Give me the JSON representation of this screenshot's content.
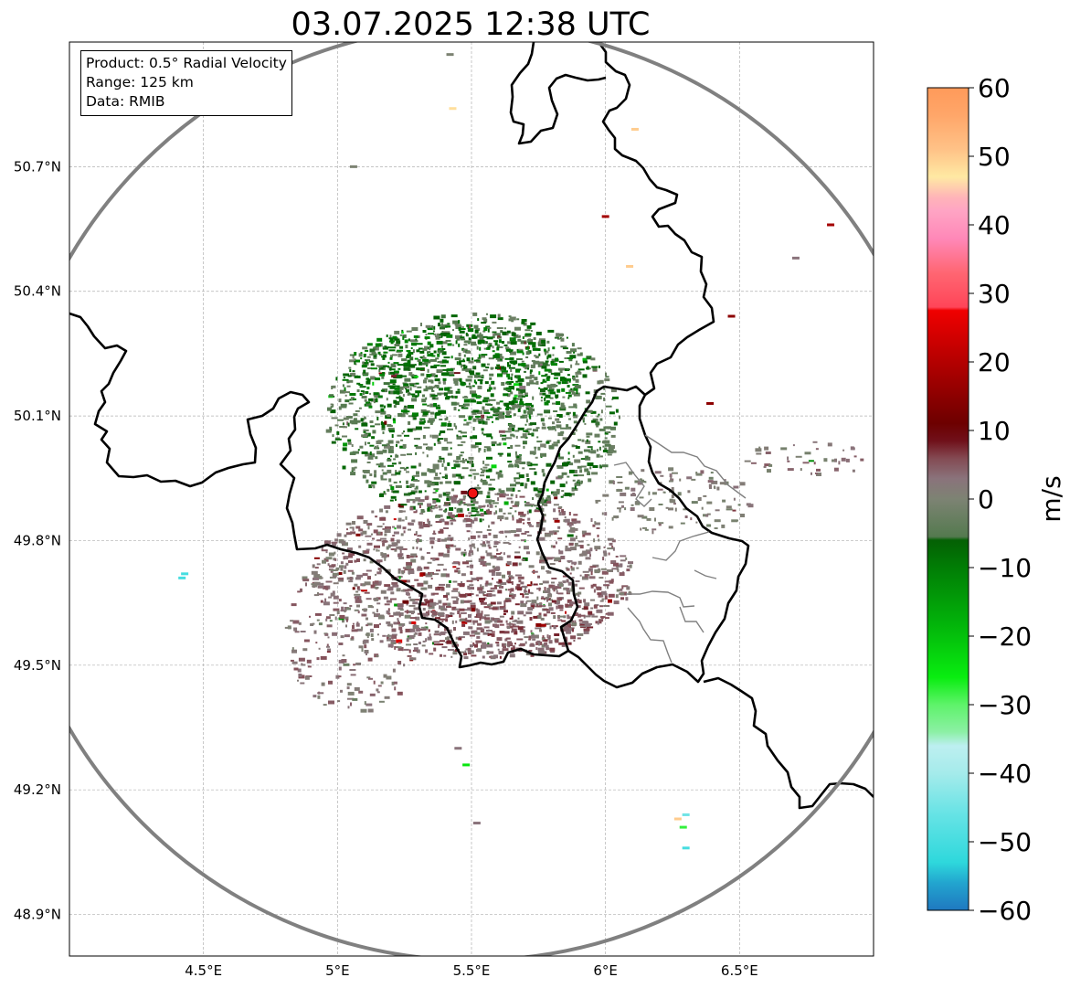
{
  "title": "03.07.2025 12:38 UTC",
  "info_box": {
    "product": "Product: 0.5° Radial Velocity",
    "range": "Range: 125 km",
    "data": "Data: RMIB"
  },
  "map": {
    "lon_range": [
      4.0,
      7.0
    ],
    "lat_range": [
      48.8,
      51.0
    ],
    "lon_ticks": [
      {
        "value": 4.5,
        "label": "4.5°E"
      },
      {
        "value": 5.0,
        "label": "5°E"
      },
      {
        "value": 5.5,
        "label": "5.5°E"
      },
      {
        "value": 6.0,
        "label": "6°E"
      },
      {
        "value": 6.5,
        "label": "6.5°E"
      }
    ],
    "lat_ticks": [
      {
        "value": 50.7,
        "label": "50.7°N"
      },
      {
        "value": 50.4,
        "label": "50.4°N"
      },
      {
        "value": 50.1,
        "label": "50.1°N"
      },
      {
        "value": 49.8,
        "label": "49.8°N"
      },
      {
        "value": 49.5,
        "label": "49.5°N"
      },
      {
        "value": 49.2,
        "label": "49.2°N"
      },
      {
        "value": 48.9,
        "label": "48.9°N"
      }
    ],
    "radar_site": {
      "lon": 5.505,
      "lat": 49.914
    },
    "range_km": 125,
    "colors": {
      "border": "#000000",
      "admin_border": "#808080",
      "range_ring": "#808080",
      "radar_marker": "#ee1111"
    }
  },
  "colorbar": {
    "label": "m/s",
    "min": -60,
    "max": 60,
    "ticks": [
      {
        "value": 60,
        "label": "60"
      },
      {
        "value": 50,
        "label": "50"
      },
      {
        "value": 40,
        "label": "40"
      },
      {
        "value": 30,
        "label": "30"
      },
      {
        "value": 20,
        "label": "20"
      },
      {
        "value": 10,
        "label": "10"
      },
      {
        "value": 0,
        "label": "0"
      },
      {
        "value": -10,
        "label": "−10"
      },
      {
        "value": -20,
        "label": "−20"
      },
      {
        "value": -30,
        "label": "−30"
      },
      {
        "value": -40,
        "label": "−40"
      },
      {
        "value": -50,
        "label": "−50"
      },
      {
        "value": -60,
        "label": "−60"
      }
    ],
    "stops": [
      {
        "v": -60,
        "c": "#1f78c0"
      },
      {
        "v": -56,
        "c": "#22a5cf"
      },
      {
        "v": -53,
        "c": "#2ed8dc"
      },
      {
        "v": -46,
        "c": "#66e3e5"
      },
      {
        "v": -40,
        "c": "#a5ebeb"
      },
      {
        "v": -36,
        "c": "#bdeff0"
      },
      {
        "v": -34,
        "c": "#8cf0a5"
      },
      {
        "v": -30,
        "c": "#5ef36a"
      },
      {
        "v": -26,
        "c": "#09ed10"
      },
      {
        "v": -18,
        "c": "#02b20a"
      },
      {
        "v": -10,
        "c": "#017d05"
      },
      {
        "v": -6,
        "c": "#046004"
      },
      {
        "v": -5.5,
        "c": "#547a4f"
      },
      {
        "v": 0,
        "c": "#7d8373"
      },
      {
        "v": 3,
        "c": "#8a737b"
      },
      {
        "v": 6,
        "c": "#834952"
      },
      {
        "v": 8.5,
        "c": "#70101a"
      },
      {
        "v": 11,
        "c": "#6d0000"
      },
      {
        "v": 20,
        "c": "#b40000"
      },
      {
        "v": 27.5,
        "c": "#f00000"
      },
      {
        "v": 28,
        "c": "#ff4558"
      },
      {
        "v": 33,
        "c": "#ff6672"
      },
      {
        "v": 38,
        "c": "#ff88b8"
      },
      {
        "v": 42,
        "c": "#ffa4c4"
      },
      {
        "v": 44,
        "c": "#ffb4b8"
      },
      {
        "v": 47,
        "c": "#ffe9a3"
      },
      {
        "v": 51,
        "c": "#ffc287"
      },
      {
        "v": 56,
        "c": "#ffa669"
      },
      {
        "v": 60,
        "c": "#ff9a5a"
      }
    ]
  },
  "echo_regions": [
    {
      "lon": 5.5,
      "lat": 50.1,
      "rlon": 0.55,
      "rlat": 0.25,
      "v": -4.5,
      "density": 0.85
    },
    {
      "lon": 5.45,
      "lat": 50.2,
      "rlon": 0.45,
      "rlat": 0.12,
      "v": -8,
      "density": 0.6
    },
    {
      "lon": 5.5,
      "lat": 49.72,
      "rlon": 0.6,
      "rlat": 0.2,
      "v": 3,
      "density": 0.8
    },
    {
      "lon": 5.6,
      "lat": 49.62,
      "rlon": 0.35,
      "rlat": 0.1,
      "v": 5,
      "density": 0.65
    },
    {
      "lon": 5.05,
      "lat": 49.58,
      "rlon": 0.25,
      "rlat": 0.2,
      "v": 2.5,
      "density": 0.35
    },
    {
      "lon": 6.25,
      "lat": 49.9,
      "rlon": 0.3,
      "rlat": 0.08,
      "v": 1,
      "density": 0.45
    },
    {
      "lon": 6.75,
      "lat": 50.0,
      "rlon": 0.25,
      "rlat": 0.04,
      "v": 2,
      "density": 0.35
    }
  ],
  "scattered_pixels": [
    {
      "lon": 4.42,
      "lat": 49.71,
      "v": -50
    },
    {
      "lon": 4.43,
      "lat": 49.72,
      "v": -50
    },
    {
      "lon": 5.43,
      "lat": 50.84,
      "v": 48
    },
    {
      "lon": 5.42,
      "lat": 50.97,
      "v": 0
    },
    {
      "lon": 6.11,
      "lat": 50.79,
      "v": 50
    },
    {
      "lon": 6.0,
      "lat": 50.58,
      "v": 18
    },
    {
      "lon": 6.84,
      "lat": 50.56,
      "v": 18
    },
    {
      "lon": 6.09,
      "lat": 50.46,
      "v": 50
    },
    {
      "lon": 5.06,
      "lat": 50.7,
      "v": 0
    },
    {
      "lon": 6.3,
      "lat": 49.14,
      "v": -45
    },
    {
      "lon": 6.27,
      "lat": 49.13,
      "v": 50
    },
    {
      "lon": 6.29,
      "lat": 49.11,
      "v": -28
    },
    {
      "lon": 6.3,
      "lat": 49.06,
      "v": -50
    },
    {
      "lon": 5.52,
      "lat": 49.12,
      "v": 3
    },
    {
      "lon": 5.45,
      "lat": 49.3,
      "v": 3
    },
    {
      "lon": 5.48,
      "lat": 49.26,
      "v": -25
    },
    {
      "lon": 6.47,
      "lat": 50.34,
      "v": 15
    },
    {
      "lon": 6.39,
      "lat": 50.13,
      "v": 15
    },
    {
      "lon": 6.71,
      "lat": 50.48,
      "v": 3
    }
  ]
}
